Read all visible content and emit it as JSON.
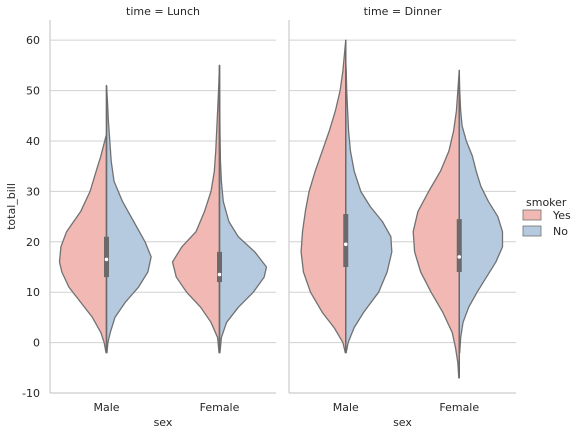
{
  "chart_data": {
    "type": "violin",
    "ylabel": "total_bill",
    "xlabel": "sex",
    "ylim": [
      -10,
      64
    ],
    "yticks": [
      -10,
      0,
      10,
      20,
      30,
      40,
      50,
      60
    ],
    "categories": [
      "Male",
      "Female"
    ],
    "grid": "horizontal",
    "legend": {
      "title": "smoker",
      "placement": "right",
      "entries": [
        {
          "label": "Yes",
          "color": "#f2b8b3"
        },
        {
          "label": "No",
          "color": "#b6cadf"
        }
      ]
    },
    "panels": [
      {
        "title": "time = Lunch",
        "violins": [
          {
            "category": "Male",
            "yes": {
              "range": [
                -2,
                41
              ],
              "profile": [
                [
                  -2,
                  0.01
                ],
                [
                  0,
                  0.05
                ],
                [
                  2,
                  0.12
                ],
                [
                  5,
                  0.3
                ],
                [
                  8,
                  0.55
                ],
                [
                  11,
                  0.8
                ],
                [
                  14,
                  0.95
                ],
                [
                  16,
                  1.0
                ],
                [
                  19,
                  0.97
                ],
                [
                  22,
                  0.85
                ],
                [
                  26,
                  0.55
                ],
                [
                  30,
                  0.35
                ],
                [
                  34,
                  0.22
                ],
                [
                  37,
                  0.12
                ],
                [
                  41,
                  0.01
                ]
              ],
              "q1": 13,
              "median": 16.5,
              "q3": 21
            },
            "no": {
              "range": [
                -2,
                51
              ],
              "profile": [
                [
                  -2,
                  0.01
                ],
                [
                  0,
                  0.03
                ],
                [
                  2,
                  0.08
                ],
                [
                  5,
                  0.18
                ],
                [
                  8,
                  0.4
                ],
                [
                  11,
                  0.68
                ],
                [
                  14,
                  0.88
                ],
                [
                  17,
                  0.95
                ],
                [
                  20,
                  0.82
                ],
                [
                  24,
                  0.58
                ],
                [
                  28,
                  0.34
                ],
                [
                  32,
                  0.16
                ],
                [
                  36,
                  0.1
                ],
                [
                  40,
                  0.07
                ],
                [
                  44,
                  0.04
                ],
                [
                  48,
                  0.02
                ],
                [
                  51,
                  0.0
                ]
              ],
              "q1": 13,
              "median": 16.5,
              "q3": 21
            }
          },
          {
            "category": "Female",
            "yes": {
              "range": [
                -2,
                55
              ],
              "profile": [
                [
                  -2,
                  0.01
                ],
                [
                  1,
                  0.04
                ],
                [
                  4,
                  0.18
                ],
                [
                  7,
                  0.4
                ],
                [
                  10,
                  0.7
                ],
                [
                  13,
                  0.92
                ],
                [
                  16,
                  1.0
                ],
                [
                  19,
                  0.8
                ],
                [
                  22,
                  0.5
                ],
                [
                  26,
                  0.32
                ],
                [
                  30,
                  0.18
                ],
                [
                  34,
                  0.11
                ],
                [
                  38,
                  0.08
                ],
                [
                  42,
                  0.06
                ],
                [
                  46,
                  0.04
                ],
                [
                  50,
                  0.02
                ],
                [
                  55,
                  0.0
                ]
              ],
              "q1": 12,
              "median": 13.5,
              "q3": 18
            },
            "no": {
              "range": [
                -2,
                55
              ],
              "profile": [
                [
                  -2,
                  0.01
                ],
                [
                  1,
                  0.04
                ],
                [
                  4,
                  0.15
                ],
                [
                  7,
                  0.4
                ],
                [
                  10,
                  0.72
                ],
                [
                  13,
                  0.95
                ],
                [
                  15,
                  1.0
                ],
                [
                  18,
                  0.75
                ],
                [
                  21,
                  0.4
                ],
                [
                  24,
                  0.2
                ],
                [
                  28,
                  0.08
                ],
                [
                  32,
                  0.04
                ],
                [
                  36,
                  0.02
                ],
                [
                  42,
                  0.01
                ],
                [
                  48,
                  0.005
                ],
                [
                  55,
                  0.0
                ]
              ],
              "q1": 12,
              "median": 13.5,
              "q3": 18
            }
          }
        ]
      },
      {
        "title": "time = Dinner",
        "violins": [
          {
            "category": "Male",
            "yes": {
              "range": [
                -2,
                60
              ],
              "profile": [
                [
                  -2,
                  0.01
                ],
                [
                  0,
                  0.06
                ],
                [
                  3,
                  0.25
                ],
                [
                  6,
                  0.5
                ],
                [
                  10,
                  0.75
                ],
                [
                  14,
                  0.9
                ],
                [
                  18,
                  0.95
                ],
                [
                  22,
                  0.92
                ],
                [
                  26,
                  0.86
                ],
                [
                  30,
                  0.78
                ],
                [
                  34,
                  0.65
                ],
                [
                  38,
                  0.5
                ],
                [
                  42,
                  0.35
                ],
                [
                  46,
                  0.22
                ],
                [
                  50,
                  0.12
                ],
                [
                  54,
                  0.06
                ],
                [
                  57,
                  0.03
                ],
                [
                  60,
                  0.0
                ]
              ],
              "q1": 15,
              "median": 19.5,
              "q3": 25.5
            },
            "no": {
              "range": [
                -2,
                56
              ],
              "profile": [
                [
                  -2,
                  0.01
                ],
                [
                  0,
                  0.05
                ],
                [
                  3,
                  0.18
                ],
                [
                  6,
                  0.38
                ],
                [
                  10,
                  0.7
                ],
                [
                  14,
                  0.88
                ],
                [
                  18,
                  0.98
                ],
                [
                  21,
                  0.96
                ],
                [
                  24,
                  0.78
                ],
                [
                  27,
                  0.52
                ],
                [
                  30,
                  0.32
                ],
                [
                  34,
                  0.18
                ],
                [
                  38,
                  0.1
                ],
                [
                  42,
                  0.06
                ],
                [
                  46,
                  0.04
                ],
                [
                  50,
                  0.02
                ],
                [
                  54,
                  0.01
                ],
                [
                  56,
                  0.0
                ]
              ],
              "q1": 15,
              "median": 19.5,
              "q3": 25.5
            }
          },
          {
            "category": "Female",
            "yes": {
              "range": [
                -7,
                54
              ],
              "profile": [
                [
                  -7,
                  0.01
                ],
                [
                  -4,
                  0.03
                ],
                [
                  -1,
                  0.08
                ],
                [
                  2,
                  0.15
                ],
                [
                  6,
                  0.35
                ],
                [
                  10,
                  0.6
                ],
                [
                  14,
                  0.82
                ],
                [
                  18,
                  0.95
                ],
                [
                  22,
                  0.98
                ],
                [
                  26,
                  0.88
                ],
                [
                  30,
                  0.65
                ],
                [
                  34,
                  0.4
                ],
                [
                  38,
                  0.22
                ],
                [
                  42,
                  0.12
                ],
                [
                  46,
                  0.06
                ],
                [
                  50,
                  0.03
                ],
                [
                  54,
                  0.0
                ]
              ],
              "q1": 14,
              "median": 17,
              "q3": 24.5
            },
            "no": {
              "range": [
                -2,
                54
              ],
              "profile": [
                [
                  -2,
                  0.01
                ],
                [
                  1,
                  0.03
                ],
                [
                  4,
                  0.08
                ],
                [
                  7,
                  0.2
                ],
                [
                  10,
                  0.38
                ],
                [
                  13,
                  0.58
                ],
                [
                  16,
                  0.78
                ],
                [
                  19,
                  0.92
                ],
                [
                  22,
                  0.92
                ],
                [
                  25,
                  0.82
                ],
                [
                  28,
                  0.62
                ],
                [
                  31,
                  0.46
                ],
                [
                  34,
                  0.36
                ],
                [
                  37,
                  0.28
                ],
                [
                  40,
                  0.15
                ],
                [
                  43,
                  0.06
                ],
                [
                  46,
                  0.03
                ],
                [
                  50,
                  0.01
                ],
                [
                  54,
                  0.0
                ]
              ],
              "q1": 14,
              "median": 17,
              "q3": 24.5
            }
          }
        ]
      }
    ]
  },
  "style": {
    "yes_color": "#f2b8b3",
    "no_color": "#b6cadf",
    "edge_color": "#717171",
    "grid_color": "#d0d0d0",
    "axis_color": "#cccccc",
    "box_color": "#6a6a6a"
  }
}
